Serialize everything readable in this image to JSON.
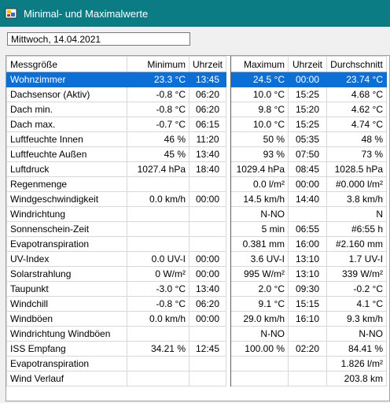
{
  "window": {
    "title": "Minimal- und Maximalwerte",
    "icon": "weather-app-icon"
  },
  "date_field": {
    "value": "Mittwoch, 14.04.2021"
  },
  "table": {
    "headers": [
      "Messgröße",
      "Minimum",
      "Uhrzeit",
      "Maximum",
      "Uhrzeit",
      "Durchschnitt"
    ],
    "rows": [
      [
        "Wohnzimmer",
        "23.3 °C",
        "13:45",
        "24.5 °C",
        "00:00",
        "23.74 °C"
      ],
      [
        "Dachsensor (Aktiv)",
        "-0.8 °C",
        "06:20",
        "10.0 °C",
        "15:25",
        "4.68 °C"
      ],
      [
        "Dach min.",
        "-0.8 °C",
        "06:20",
        "9.8 °C",
        "15:20",
        "4.62 °C"
      ],
      [
        "Dach max.",
        "-0.7 °C",
        "06:15",
        "10.0 °C",
        "15:25",
        "4.74 °C"
      ],
      [
        "Luftfeuchte Innen",
        "46 %",
        "11:20",
        "50 %",
        "05:35",
        "48 %"
      ],
      [
        "Luftfeuchte Außen",
        "45 %",
        "13:40",
        "93 %",
        "07:50",
        "73 %"
      ],
      [
        "Luftdruck",
        "1027.4 hPa",
        "18:40",
        "1029.4 hPa",
        "08:45",
        "1028.5 hPa"
      ],
      [
        "Regenmenge",
        "",
        "",
        "0.0 l/m²",
        "00:00",
        "#0.000 l/m²"
      ],
      [
        "Windgeschwindigkeit",
        "0.0 km/h",
        "00:00",
        "14.5 km/h",
        "14:40",
        "3.8 km/h"
      ],
      [
        "Windrichtung",
        "",
        "",
        "N-NO",
        "",
        "N"
      ],
      [
        "Sonnenschein-Zeit",
        "",
        "",
        "5 min",
        "06:55",
        "#6:55 h"
      ],
      [
        "Evapotranspiration",
        "",
        "",
        "0.381 mm",
        "16:00",
        "#2.160 mm"
      ],
      [
        "UV-Index",
        "0.0 UV-I",
        "00:00",
        "3.6 UV-I",
        "13:10",
        "1.7 UV-I"
      ],
      [
        "Solarstrahlung",
        "0 W/m²",
        "00:00",
        "995 W/m²",
        "13:10",
        "339 W/m²"
      ],
      [
        "Taupunkt",
        "-3.0 °C",
        "13:40",
        "2.0 °C",
        "09:30",
        "-0.2 °C"
      ],
      [
        "Windchill",
        "-0.8 °C",
        "06:20",
        "9.1 °C",
        "15:15",
        "4.1 °C"
      ],
      [
        "Windböen",
        "0.0 km/h",
        "00:00",
        "29.0 km/h",
        "16:10",
        "9.3 km/h"
      ],
      [
        "Windrichtung Windböen",
        "",
        "",
        "N-NO",
        "",
        "N-NO"
      ],
      [
        "ISS Empfang",
        "34.21 %",
        "12:45",
        "100.00 %",
        "02:20",
        "84.41 %"
      ],
      [
        "Evapotranspiration",
        "",
        "",
        "",
        "",
        "1.826 l/m²"
      ],
      [
        "Wind Verlauf",
        "",
        "",
        "",
        "",
        "203.8 km"
      ]
    ]
  },
  "colors": {
    "titlebar": "#0c7c84",
    "selection": "#0c6fd6"
  }
}
